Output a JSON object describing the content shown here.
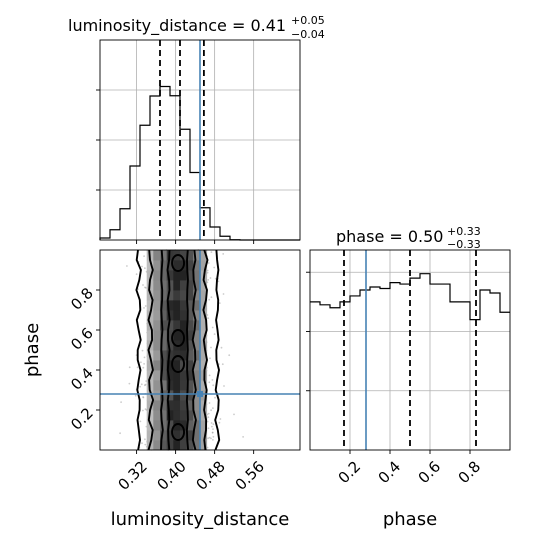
{
  "figure": {
    "type": "corner-plot",
    "truth_color": "#4682b4"
  },
  "chart_data": [
    {
      "type": "bar",
      "panel": "luminosity_distance marginal",
      "title": {
        "param": "luminosity_distance",
        "value": "0.41",
        "plus": "+0.05",
        "minus": "−0.04"
      },
      "bins": [
        0.245,
        0.2655,
        0.286,
        0.3065,
        0.327,
        0.3475,
        0.368,
        0.3885,
        0.409,
        0.4295,
        0.45,
        0.4705,
        0.491,
        0.5115,
        0.532,
        0.5525,
        0.573,
        0.5935,
        0.614,
        0.6345,
        0.655
      ],
      "counts": [
        0.8,
        4.1,
        12.5,
        29.6,
        45.9,
        57.6,
        61.4,
        57.7,
        44.3,
        27.0,
        12.9,
        5.2,
        1.5,
        0.1,
        0.0,
        0.0,
        0.0,
        0.0,
        0.0,
        0.0
      ],
      "quantiles": [
        0.368,
        0.409,
        0.458
      ],
      "truth": 0.45,
      "xlim": [
        0.245,
        0.655
      ],
      "ylim": [
        0,
        80
      ],
      "yticks": [
        20,
        40,
        60
      ],
      "xticks": [
        0.32,
        0.4,
        0.48,
        0.56
      ]
    },
    {
      "type": "heatmap",
      "panel": "2D posterior",
      "xlabel": "luminosity_distance",
      "ylabel": "phase",
      "xticks": [
        {
          "value": 0.32,
          "label": "0.32"
        },
        {
          "value": 0.4,
          "label": "0.40"
        },
        {
          "value": 0.48,
          "label": "0.48"
        },
        {
          "value": 0.56,
          "label": "0.56"
        }
      ],
      "yticks": [
        {
          "value": 0.2,
          "label": "0.2"
        },
        {
          "value": 0.4,
          "label": "0.4"
        },
        {
          "value": 0.6,
          "label": "0.6"
        },
        {
          "value": 0.8,
          "label": "0.8"
        }
      ],
      "xlim": [
        0.245,
        0.655
      ],
      "ylim": [
        0.0,
        1.0
      ],
      "truth": {
        "x": 0.45,
        "y": 0.28
      },
      "center_x": 0.405,
      "sigma_x": 0.035,
      "contour_levels_sigma": [
        0.55,
        0.95,
        1.6,
        2.3
      ]
    },
    {
      "type": "bar",
      "panel": "phase marginal",
      "title": {
        "param": "phase",
        "value": "0.50",
        "plus": "+0.33",
        "minus": "−0.33"
      },
      "xlabel": "phase",
      "bins": [
        0.0,
        0.05,
        0.1,
        0.15,
        0.2,
        0.25,
        0.3,
        0.35,
        0.4,
        0.45,
        0.5,
        0.55,
        0.6,
        0.65,
        0.7,
        0.75,
        0.8,
        0.85,
        0.9,
        0.95,
        1.0
      ],
      "counts": [
        1.0,
        0.98,
        0.96,
        1.0,
        1.04,
        1.08,
        1.1,
        1.09,
        1.13,
        1.12,
        1.16,
        1.19,
        1.12,
        1.12,
        1.0,
        1.0,
        0.88,
        1.08,
        1.06,
        0.93
      ],
      "quantiles": [
        0.17,
        0.5,
        0.83
      ],
      "truth": 0.28,
      "xlim": [
        0.0,
        1.0
      ],
      "ylim": [
        0.0,
        1.35
      ],
      "yticks": [
        0.4,
        0.8,
        1.2
      ],
      "xticks": [
        {
          "value": 0.2,
          "label": "0.2"
        },
        {
          "value": 0.4,
          "label": "0.4"
        },
        {
          "value": 0.6,
          "label": "0.6"
        },
        {
          "value": 0.8,
          "label": "0.8"
        }
      ]
    }
  ]
}
